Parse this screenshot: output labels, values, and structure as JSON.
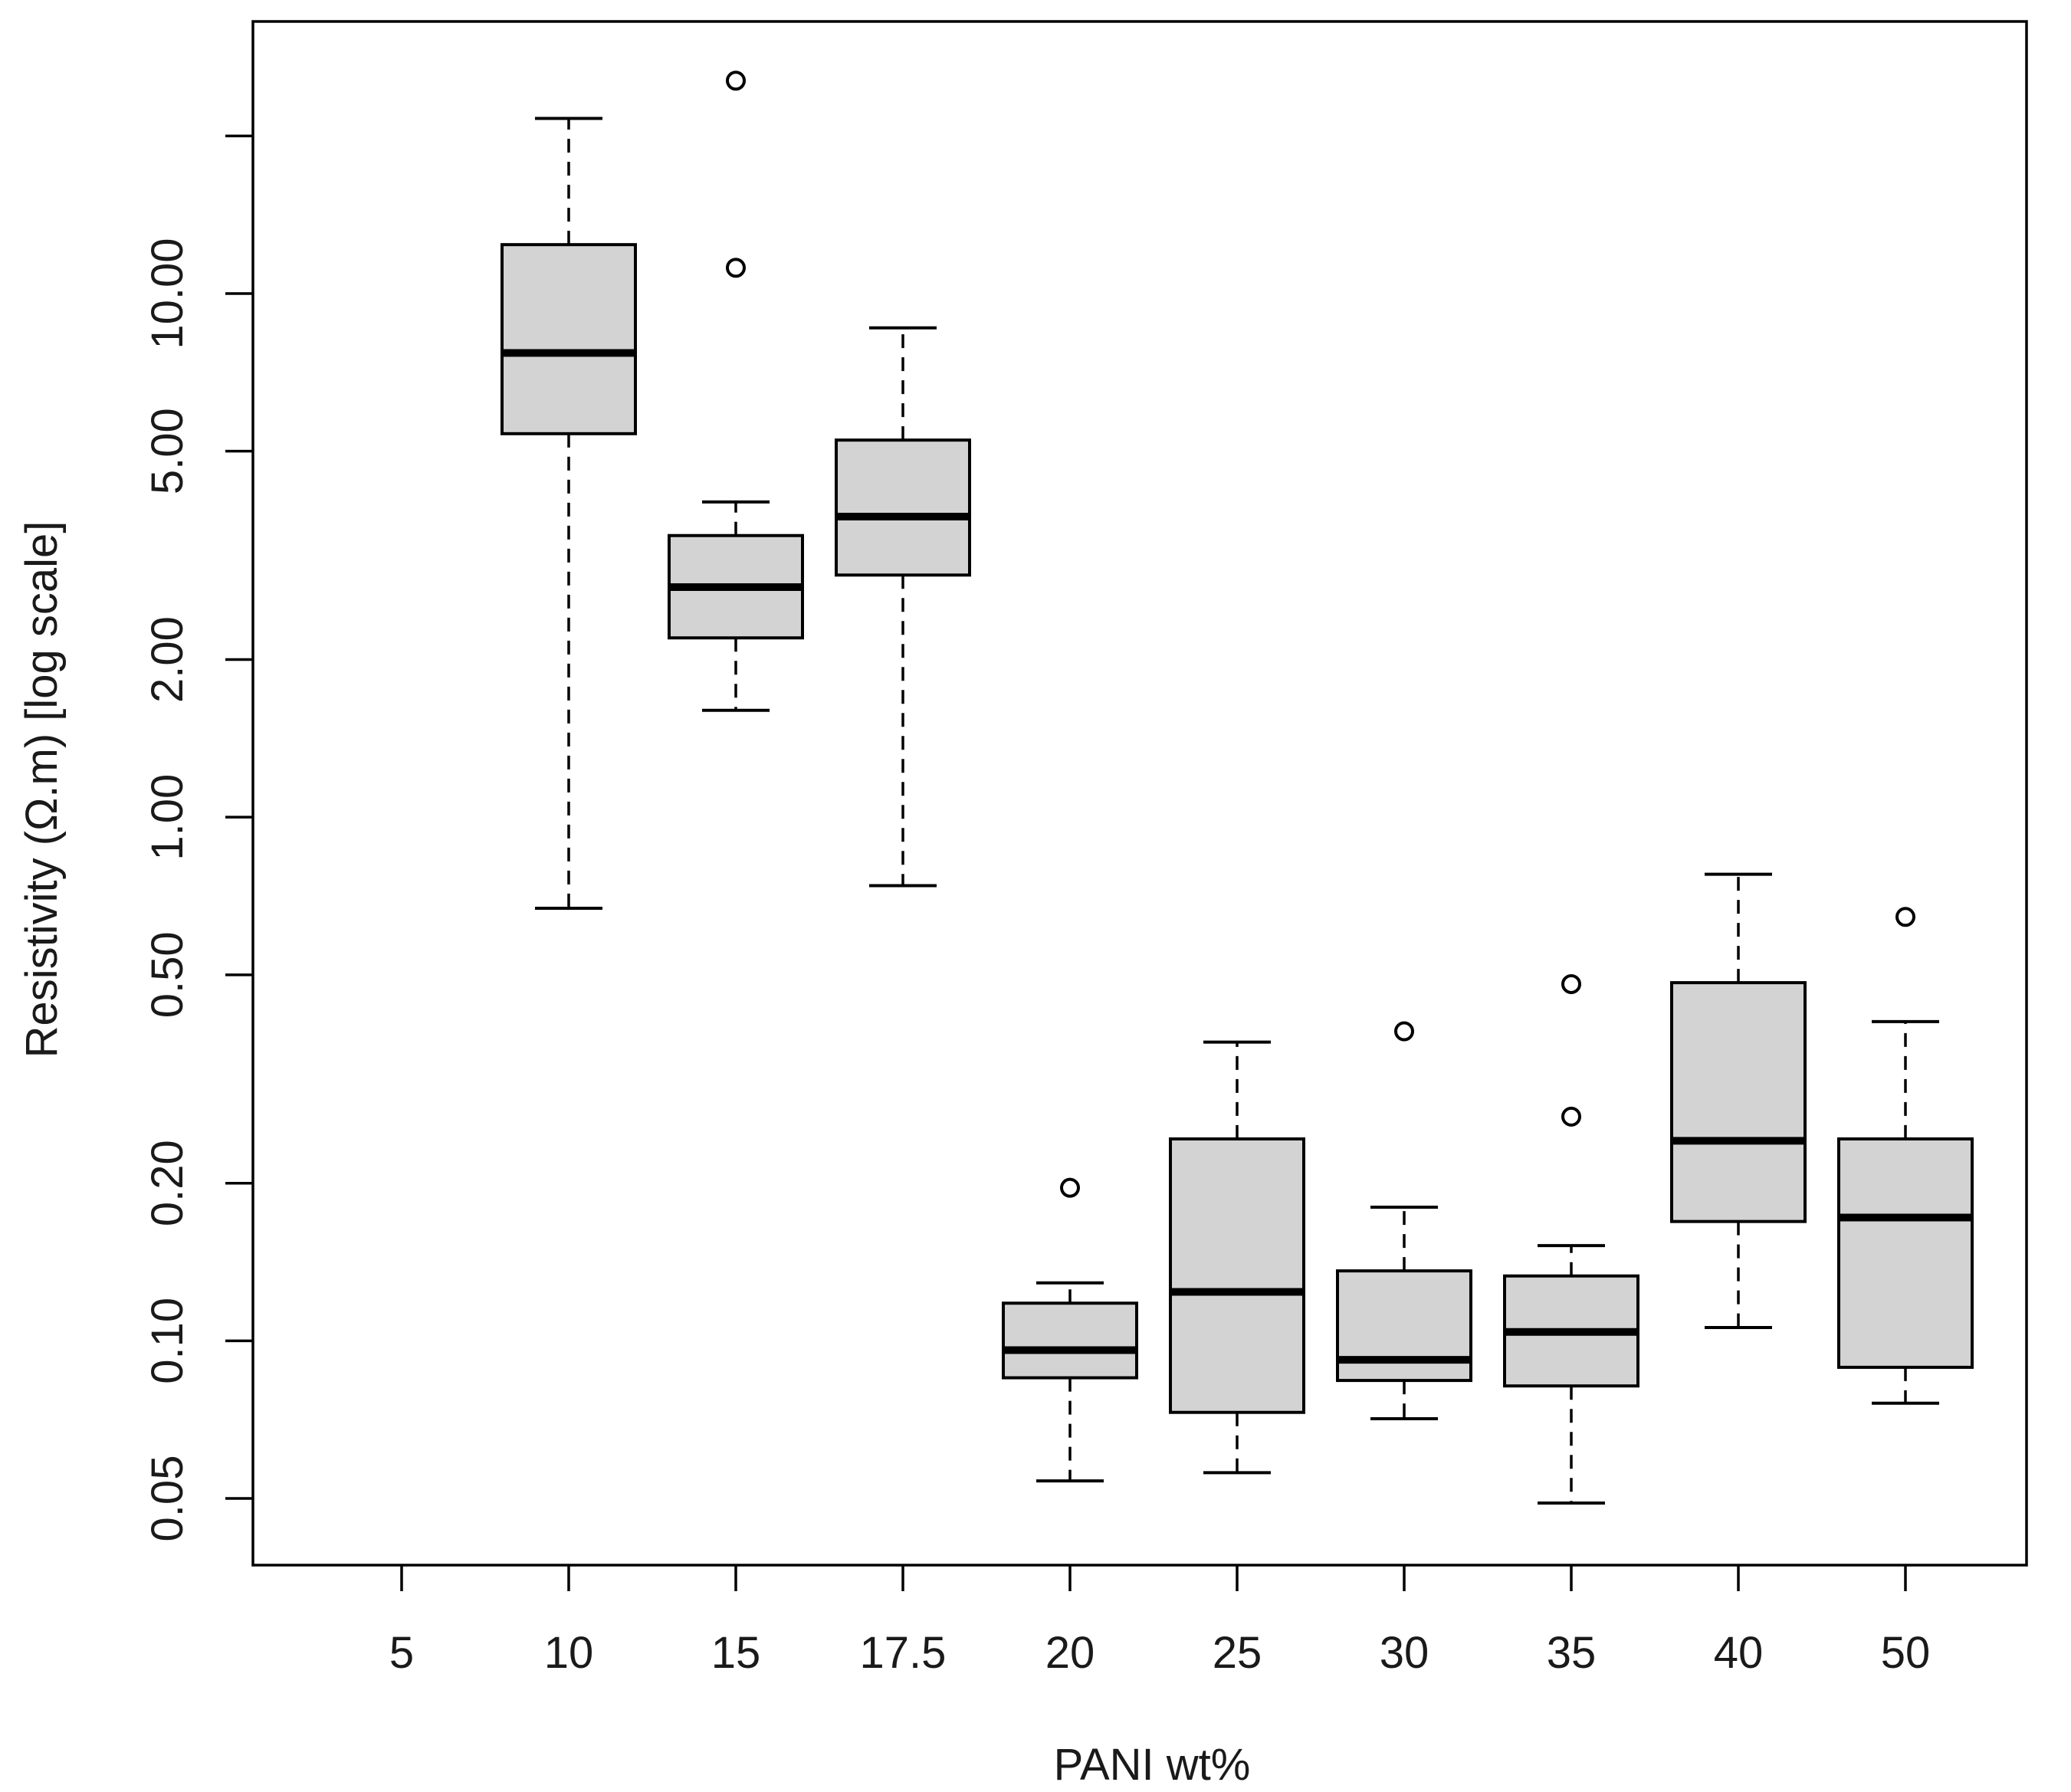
{
  "chart_data": {
    "type": "boxplot",
    "title": "",
    "xlabel": "PANI wt%",
    "ylabel": "Resistivity (Ω.m) [log scale]",
    "y_scale": "log",
    "ylim": [
      0.038,
      38
    ],
    "categories": [
      "5",
      "10",
      "15",
      "17.5",
      "20",
      "25",
      "30",
      "35",
      "40",
      "50"
    ],
    "y_ticks": [
      {
        "value": 0.05,
        "label": "0.05"
      },
      {
        "value": 0.1,
        "label": "0.10"
      },
      {
        "value": 0.2,
        "label": "0.20"
      },
      {
        "value": 0.5,
        "label": "0.50"
      },
      {
        "value": 1,
        "label": "1.00"
      },
      {
        "value": 2,
        "label": "2.00"
      },
      {
        "value": 5,
        "label": "5.00"
      },
      {
        "value": 10,
        "label": "10.00"
      },
      {
        "value": 20,
        "label": ""
      }
    ],
    "boxes": [
      {
        "category": "5",
        "empty": true
      },
      {
        "category": "10",
        "whisker_low": 0.67,
        "q1": 5.4,
        "median": 7.7,
        "q3": 12.4,
        "whisker_high": 21.6,
        "outliers": []
      },
      {
        "category": "15",
        "whisker_low": 1.6,
        "q1": 2.2,
        "median": 2.75,
        "q3": 3.45,
        "whisker_high": 4.0,
        "outliers": [
          11.2,
          25.5
        ]
      },
      {
        "category": "17.5",
        "whisker_low": 0.74,
        "q1": 2.9,
        "median": 3.75,
        "q3": 5.25,
        "whisker_high": 8.6,
        "outliers": []
      },
      {
        "category": "20",
        "whisker_low": 0.054,
        "q1": 0.085,
        "median": 0.096,
        "q3": 0.118,
        "whisker_high": 0.129,
        "outliers": [
          0.196
        ]
      },
      {
        "category": "25",
        "whisker_low": 0.056,
        "q1": 0.073,
        "median": 0.124,
        "q3": 0.243,
        "whisker_high": 0.372,
        "outliers": []
      },
      {
        "category": "30",
        "whisker_low": 0.071,
        "q1": 0.084,
        "median": 0.092,
        "q3": 0.136,
        "whisker_high": 0.18,
        "outliers": [
          0.39
        ]
      },
      {
        "category": "35",
        "whisker_low": 0.049,
        "q1": 0.082,
        "median": 0.104,
        "q3": 0.133,
        "whisker_high": 0.152,
        "outliers": [
          0.268,
          0.48
        ]
      },
      {
        "category": "40",
        "whisker_low": 0.106,
        "q1": 0.169,
        "median": 0.241,
        "q3": 0.483,
        "whisker_high": 0.778,
        "outliers": []
      },
      {
        "category": "50",
        "whisker_low": 0.076,
        "q1": 0.089,
        "median": 0.172,
        "q3": 0.243,
        "whisker_high": 0.407,
        "outliers": [
          0.645
        ]
      }
    ],
    "colors": {
      "box_fill": "#d3d3d3",
      "stroke": "#000000",
      "text": "#1a1a1a",
      "background": "#ffffff"
    },
    "grid": false,
    "legend": "none"
  }
}
